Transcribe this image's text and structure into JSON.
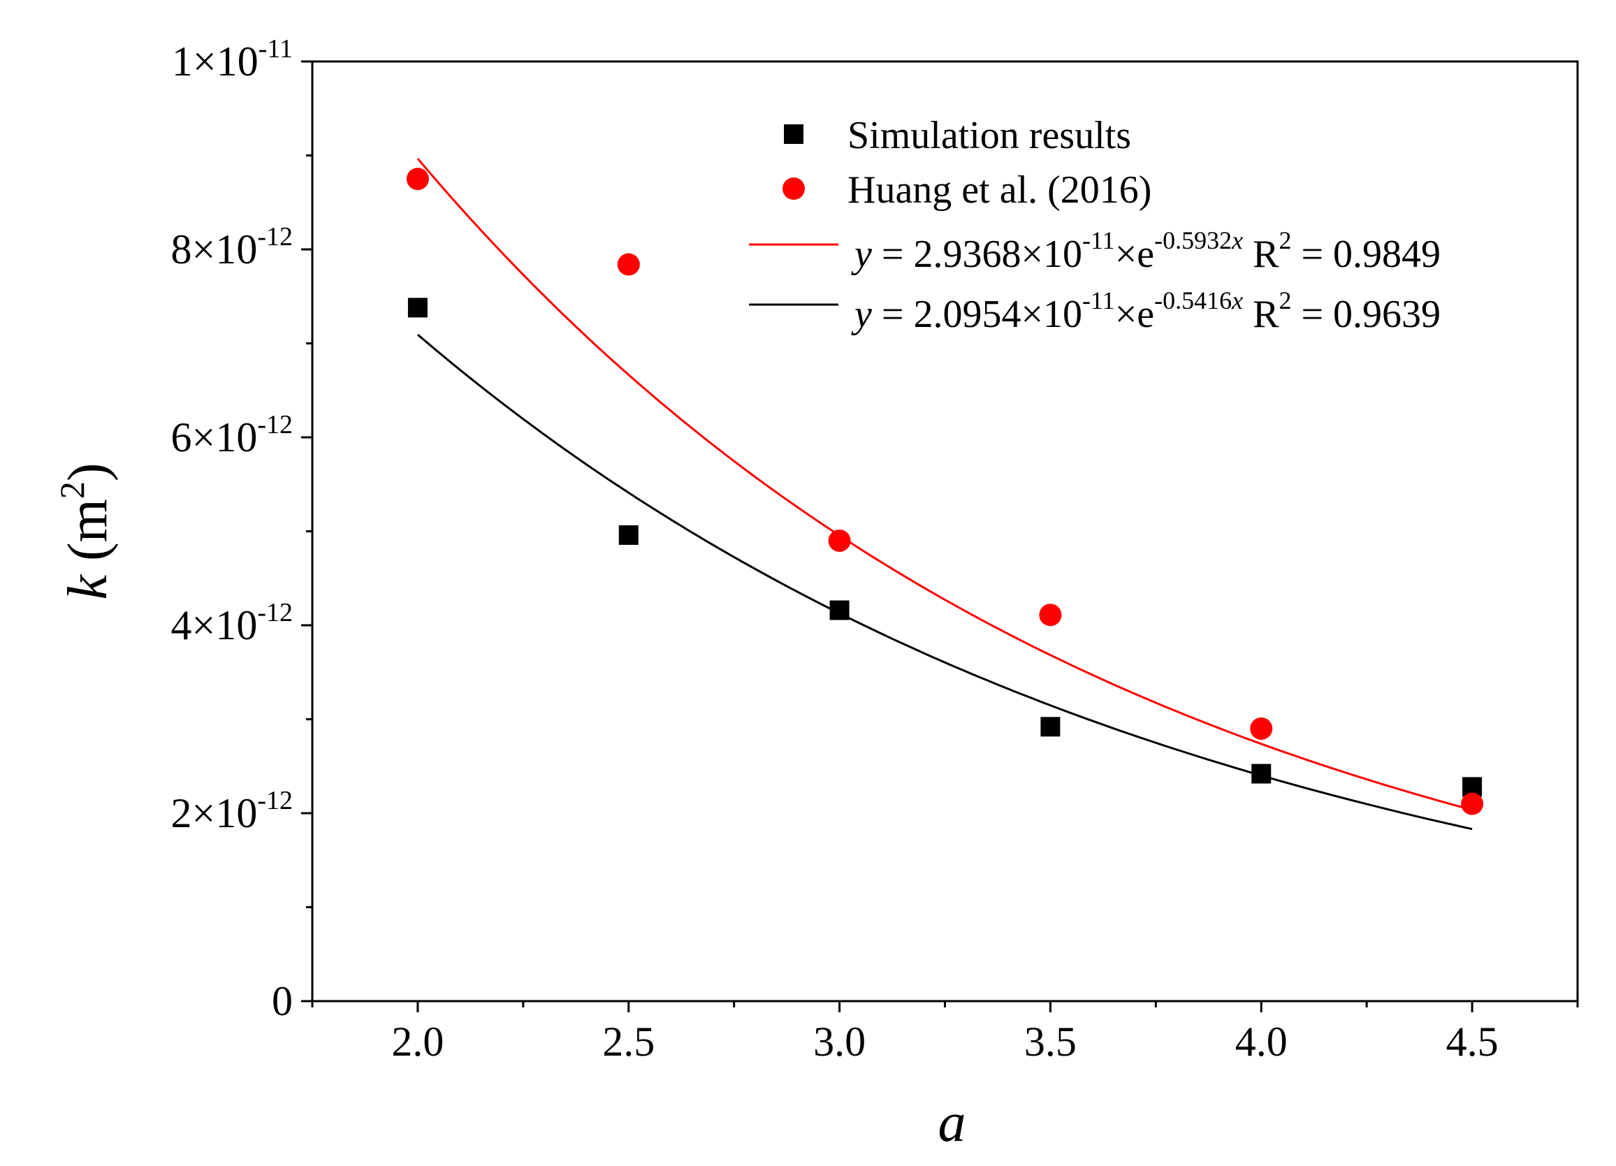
{
  "chart_data": {
    "type": "scatter",
    "xlabel": "a",
    "ylabel": {
      "symbol": "k",
      "unit": "(m",
      "unit_sup": "2",
      "unit_close": ")"
    },
    "xlim": [
      1.75,
      4.75
    ],
    "ylim": [
      0,
      1e-11
    ],
    "x_ticks": [
      {
        "value": 2.0,
        "label": "2.0"
      },
      {
        "value": 2.5,
        "label": "2.5"
      },
      {
        "value": 3.0,
        "label": "3.0"
      },
      {
        "value": 3.5,
        "label": "3.5"
      },
      {
        "value": 4.0,
        "label": "4.0"
      },
      {
        "value": 4.5,
        "label": "4.5"
      }
    ],
    "x_minor_ticks": [
      1.75,
      2.25,
      2.75,
      3.25,
      3.75,
      4.25,
      4.75
    ],
    "y_ticks": [
      {
        "value": 0,
        "label": "0",
        "sup": ""
      },
      {
        "value": 2e-12,
        "label": "2×10",
        "sup": "-12"
      },
      {
        "value": 4e-12,
        "label": "4×10",
        "sup": "-12"
      },
      {
        "value": 6e-12,
        "label": "6×10",
        "sup": "-12"
      },
      {
        "value": 8e-12,
        "label": "8×10",
        "sup": "-12"
      },
      {
        "value": 1e-11,
        "label": "1×10",
        "sup": "-11"
      }
    ],
    "y_minor_ticks": [
      1e-12,
      3e-12,
      5e-12,
      7e-12,
      9e-12
    ],
    "series": [
      {
        "name": "Simulation results",
        "marker": "square",
        "color": "#000000",
        "x": [
          2.0,
          2.5,
          3.0,
          3.5,
          4.0,
          4.5
        ],
        "y": [
          7.38e-12,
          4.96e-12,
          4.16e-12,
          2.92e-12,
          2.42e-12,
          2.28e-12
        ]
      },
      {
        "name": "Huang et al. (2016)",
        "marker": "circle",
        "color": "#ff0000",
        "x": [
          2.0,
          2.5,
          3.0,
          3.5,
          4.0,
          4.5
        ],
        "y": [
          8.75e-12,
          7.84e-12,
          4.9e-12,
          4.11e-12,
          2.9e-12,
          2.1e-12
        ]
      }
    ],
    "fits": [
      {
        "color": "#ff0000",
        "a": 2.9368e-11,
        "b": -0.5932,
        "x_range": [
          2.0,
          4.5
        ],
        "legend": {
          "y": "y",
          "eq": " = 2.9368×10",
          "exp1": "-11",
          "times_e": "×e",
          "exp2": "-0.5932",
          "x": "x",
          "r2": " R",
          "r2sup": "2",
          "r2val": " = 0.9849"
        }
      },
      {
        "color": "#000000",
        "a": 2.0954e-11,
        "b": -0.5416,
        "x_range": [
          2.0,
          4.5
        ],
        "legend": {
          "y": "y",
          "eq": " = 2.0954×10",
          "exp1": "-11",
          "times_e": "×e",
          "exp2": "-0.5416",
          "x": "x",
          "r2": " R",
          "r2sup": "2",
          "r2val": " = 0.9639"
        }
      }
    ],
    "legend_position": "top-right"
  }
}
